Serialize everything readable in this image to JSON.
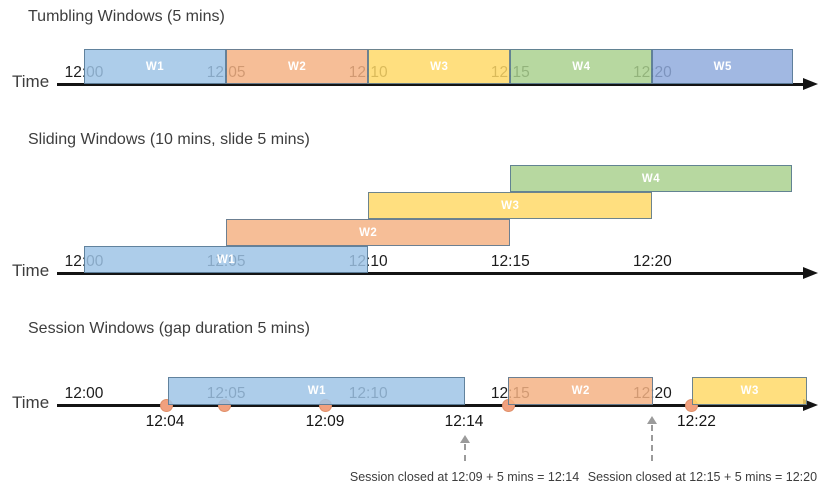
{
  "colors": {
    "window_fills": {
      "blue": "#9DC3E6",
      "orange": "#F4B183",
      "yellow": "#FFD966",
      "green": "#A9D18E",
      "periwinkle": "#8FAADC"
    },
    "window_fill_opacity": 0.84,
    "window_border": "#54748F",
    "window_label_text": "#FFFFFF",
    "axis": "#141414",
    "tick_text": "#1C1C1C",
    "title_text": "#3D3D3D",
    "event_dot": "#F1A07E",
    "event_dot_border": "#DE8E68",
    "callout": "#9B9B9B"
  },
  "sections": [
    {
      "title": "Tumbling Windows (5 mins)",
      "time_axis_label": "Time",
      "ticks": [
        {
          "pos_min": 0,
          "label": "12:00"
        },
        {
          "pos_min": 5,
          "label": "12:05"
        },
        {
          "pos_min": 10,
          "label": "12:10"
        },
        {
          "pos_min": 15,
          "label": "12:15"
        },
        {
          "pos_min": 20,
          "label": "12:20"
        }
      ],
      "windows": [
        {
          "label": "W1",
          "start_min": 0,
          "end_min": 5,
          "row": 0,
          "color": "blue"
        },
        {
          "label": "W2",
          "start_min": 5,
          "end_min": 10,
          "row": 0,
          "color": "orange"
        },
        {
          "label": "W3",
          "start_min": 10,
          "end_min": 15,
          "row": 0,
          "color": "yellow"
        },
        {
          "label": "W4",
          "start_min": 15,
          "end_min": 20,
          "row": 0,
          "color": "green"
        },
        {
          "label": "W5",
          "start_min": 20,
          "end_min": 24.95,
          "row": 0,
          "color": "periwinkle"
        }
      ],
      "events": [],
      "event_time_labels": [],
      "callouts": []
    },
    {
      "title": "Sliding Windows (10 mins, slide 5 mins)",
      "time_axis_label": "Time",
      "ticks": [
        {
          "pos_min": 0,
          "label": "12:00"
        },
        {
          "pos_min": 5,
          "label": "12:05"
        },
        {
          "pos_min": 10,
          "label": "12:10"
        },
        {
          "pos_min": 15,
          "label": "12:15"
        },
        {
          "pos_min": 20,
          "label": "12:20"
        }
      ],
      "windows": [
        {
          "label": "W1",
          "start_min": 0,
          "end_min": 10,
          "row": 0,
          "color": "blue"
        },
        {
          "label": "W2",
          "start_min": 5,
          "end_min": 15,
          "row": 1,
          "color": "orange"
        },
        {
          "label": "W3",
          "start_min": 10,
          "end_min": 20,
          "row": 2,
          "color": "yellow"
        },
        {
          "label": "W4",
          "start_min": 15,
          "end_min": 24.9,
          "row": 3,
          "color": "green"
        }
      ],
      "events": [],
      "event_time_labels": [],
      "callouts": []
    },
    {
      "title": "Session Windows (gap duration 5 mins)",
      "time_axis_label": "Time",
      "ticks": [
        {
          "pos_min": 0,
          "label": "12:00"
        },
        {
          "pos_min": 5,
          "label": "12:05"
        },
        {
          "pos_min": 10,
          "label": "12:10"
        },
        {
          "pos_min": 15,
          "label": "12:15"
        },
        {
          "pos_min": 20,
          "label": "12:20"
        }
      ],
      "windows": [
        {
          "label": "W1",
          "start_min": 2.97,
          "end_min": 13.42,
          "row": 0,
          "color": "blue"
        },
        {
          "label": "W2",
          "start_min": 14.93,
          "end_min": 20.03,
          "row": 0,
          "color": "orange"
        },
        {
          "label": "W3",
          "start_min": 21.4,
          "end_min": 25.45,
          "row": 0,
          "color": "yellow"
        }
      ],
      "events": [
        {
          "pos_min": 2.92
        },
        {
          "pos_min": 4.93
        },
        {
          "pos_min": 8.48
        },
        {
          "pos_min": 14.92
        },
        {
          "pos_min": 21.39
        }
      ],
      "event_time_labels": [
        {
          "pos_min": 2.85,
          "label": "12:04"
        },
        {
          "pos_min": 8.48,
          "label": "12:09"
        },
        {
          "pos_min": 13.37,
          "label": "12:14"
        },
        {
          "pos_min": 21.55,
          "label": "12:22"
        }
      ],
      "callouts": [
        {
          "arrow_pos_min": 13.4,
          "tall": false,
          "text_center_min": 13.39,
          "text": "Session closed at 12:09 + 5 mins = 12:14"
        },
        {
          "arrow_pos_min": 20.0,
          "tall": true,
          "text_center_min": 21.76,
          "text": "Session closed at 12:15 + 5 mins = 12:20"
        }
      ]
    }
  ]
}
